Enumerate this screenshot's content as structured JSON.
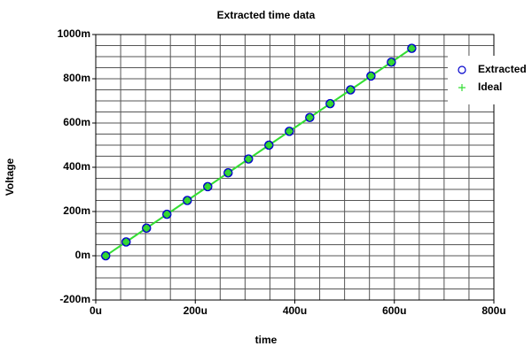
{
  "chart_data": {
    "type": "scatter",
    "title": "Extracted time data",
    "x_label": "time",
    "y_label": "Voltage",
    "xlim": [
      0,
      800
    ],
    "ylim": [
      -200,
      1000
    ],
    "xticks": [
      {
        "value": 0,
        "label": "0u"
      },
      {
        "value": 200,
        "label": "200u"
      },
      {
        "value": 400,
        "label": "400u"
      },
      {
        "value": 600,
        "label": "600u"
      },
      {
        "value": 800,
        "label": "800u"
      }
    ],
    "yticks": [
      {
        "value": -200,
        "label": "-200m"
      },
      {
        "value": 0,
        "label": "0m"
      },
      {
        "value": 200,
        "label": "200m"
      },
      {
        "value": 400,
        "label": "400m"
      },
      {
        "value": 600,
        "label": "600m"
      },
      {
        "value": 800,
        "label": "800m"
      },
      {
        "value": 1000,
        "label": "1000m"
      }
    ],
    "x_grid": [
      0,
      50,
      100,
      150,
      200,
      250,
      300,
      350,
      400,
      450,
      500,
      550,
      600,
      650,
      700,
      750,
      800
    ],
    "y_grid": [
      -200,
      -150,
      -100,
      -50,
      0,
      50,
      100,
      150,
      200,
      250,
      300,
      350,
      400,
      450,
      500,
      550,
      600,
      650,
      700,
      750,
      800,
      850,
      900,
      950,
      1000
    ],
    "grid": true,
    "legend": "right",
    "series": [
      {
        "name": "Extracted",
        "color": "#0000cc",
        "marker": "circle",
        "x": [
          20,
          61,
          102,
          143,
          184,
          225,
          266,
          307,
          348,
          389,
          430,
          471,
          512,
          553,
          594,
          635
        ],
        "values": [
          0,
          62.5,
          125,
          187.5,
          250,
          312.5,
          375,
          437.5,
          500,
          562.5,
          625,
          687.5,
          750,
          812.5,
          875,
          937.5
        ]
      },
      {
        "name": "Ideal",
        "color": "#33dd33",
        "marker": "plus",
        "x": [
          20,
          61,
          102,
          143,
          184,
          225,
          266,
          307,
          348,
          389,
          430,
          471,
          512,
          553,
          594,
          635
        ],
        "values": [
          0,
          62.5,
          125,
          187.5,
          250,
          312.5,
          375,
          437.5,
          500,
          562.5,
          625,
          687.5,
          750,
          812.5,
          875,
          937.5
        ]
      }
    ]
  }
}
